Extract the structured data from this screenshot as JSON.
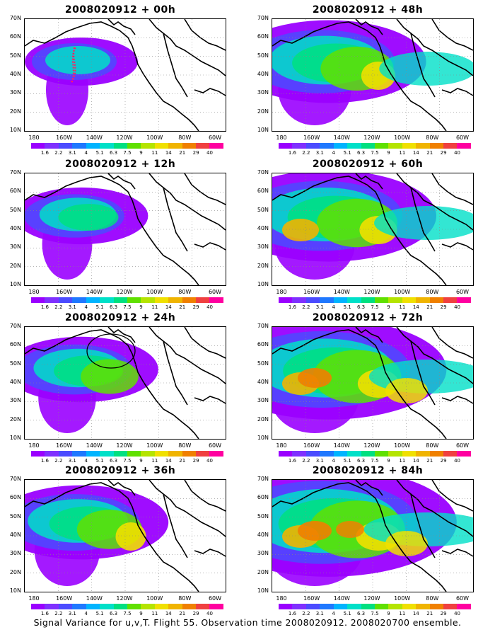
{
  "panels": [
    {
      "title": "2008020912 + 00h",
      "level": 0
    },
    {
      "title": "2008020912 + 48h",
      "level": 4
    },
    {
      "title": "2008020912 + 12h",
      "level": 1
    },
    {
      "title": "2008020912 + 60h",
      "level": 5
    },
    {
      "title": "2008020912 + 24h",
      "level": 2,
      "circle": true
    },
    {
      "title": "2008020912 + 72h",
      "level": 6
    },
    {
      "title": "2008020912 + 36h",
      "level": 3
    },
    {
      "title": "2008020912 + 84h",
      "level": 7
    }
  ],
  "lat_labels": [
    "70N",
    "60N",
    "50N",
    "40N",
    "30N",
    "20N",
    "10N"
  ],
  "lon_labels": [
    "180",
    "160W",
    "140W",
    "120W",
    "100W",
    "80W",
    "60W"
  ],
  "colorbar": {
    "labels": [
      "1.6",
      "2.2",
      "3.1",
      "4",
      "5.1",
      "6.3",
      "7.5",
      "9",
      "11",
      "14",
      "21",
      "29",
      "40"
    ],
    "colors": [
      "#9a00ff",
      "#7f30ff",
      "#4b4bff",
      "#1f78ff",
      "#00b4ff",
      "#00e0c8",
      "#00e080",
      "#60e000",
      "#b4e400",
      "#f0e000",
      "#f0b400",
      "#f08000",
      "#f04040",
      "#ff00a0"
    ]
  },
  "footer": "Signal Variance for u,v,T. Flight 55. Observation time 2008020912. 2008020700 ensemble."
}
